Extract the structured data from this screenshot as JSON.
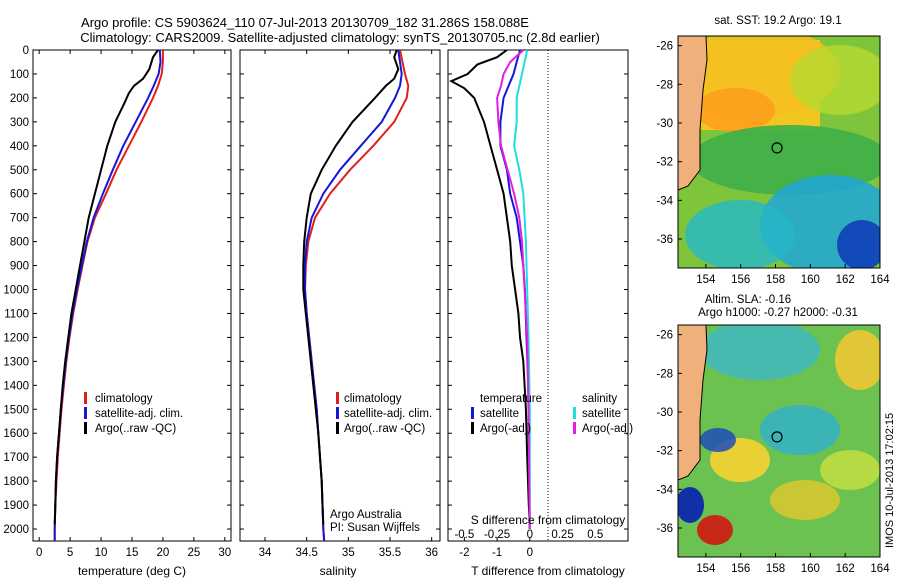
{
  "title": {
    "line1": "Argo profile: CS 5903624_110 07-Jul-2013 20130709_182 31.286S 158.088E",
    "line2": "Climatology: CARS2009. Satellite-adjusted climatology: synTS_20130705.nc (2.8d earlier)"
  },
  "footer": {
    "credit1": "Argo Australia",
    "credit2": "PI: Susan Wijffels",
    "stamp": "IMOS 10-Jul-2013 17:02:15"
  },
  "colors": {
    "climatology": "#e0201c",
    "satellite": "#1616d8",
    "argo": "#000000",
    "sal_satellite": "#22dde0",
    "sal_argo": "#e020e0"
  },
  "chart_data": [
    {
      "type": "line",
      "id": "temperature",
      "xlabel": "temperature (deg C)",
      "ylabel": "",
      "xlim": [
        -1,
        31
      ],
      "ylim": [
        2050,
        0
      ],
      "xticks": [
        0,
        5,
        10,
        15,
        20,
        25,
        30
      ],
      "yticks": [
        0,
        100,
        200,
        300,
        400,
        500,
        600,
        700,
        800,
        900,
        1000,
        1100,
        1200,
        1300,
        1400,
        1500,
        1600,
        1700,
        1800,
        1900,
        2000
      ],
      "legend": [
        "climatology",
        "satellite-adj. clim.",
        "Argo(..raw -QC)"
      ],
      "series": [
        {
          "name": "climatology",
          "depth": [
            0,
            50,
            100,
            150,
            200,
            300,
            400,
            500,
            600,
            700,
            800,
            900,
            1000,
            1100,
            1200,
            1300,
            1400,
            1500,
            1600,
            1700,
            1800,
            1900,
            2000,
            2050
          ],
          "values": [
            20,
            20,
            19.8,
            19.2,
            18.4,
            16.5,
            14.5,
            12.5,
            10.8,
            9.0,
            7.8,
            7.0,
            6.2,
            5.5,
            4.9,
            4.4,
            4.0,
            3.6,
            3.3,
            3.0,
            2.8,
            2.6,
            2.5,
            2.5
          ]
        },
        {
          "name": "satellite-adj. clim.",
          "depth": [
            0,
            50,
            100,
            150,
            200,
            300,
            400,
            500,
            600,
            700,
            800,
            900,
            1000,
            1100,
            1200,
            1300,
            1400,
            1500,
            1600,
            1700,
            1800,
            1900,
            2000,
            2050
          ],
          "values": [
            19.5,
            19.6,
            19.3,
            18.5,
            17.6,
            15.6,
            13.6,
            11.9,
            10.3,
            8.8,
            7.7,
            6.9,
            6.1,
            5.4,
            4.8,
            4.3,
            3.9,
            3.5,
            3.2,
            2.9,
            2.7,
            2.6,
            2.5,
            2.5
          ]
        },
        {
          "name": "Argo(..raw -QC)",
          "depth": [
            0,
            30,
            80,
            120,
            150,
            180,
            220,
            300,
            400,
            500,
            600,
            700,
            800,
            900,
            1000,
            1100,
            1200,
            1300,
            1400,
            1500,
            1600,
            1700,
            1800,
            1900,
            1980
          ],
          "values": [
            19.2,
            18.4,
            17.8,
            16.8,
            15.3,
            14.5,
            13.8,
            12.3,
            11.0,
            10.0,
            9.0,
            8.0,
            7.3,
            6.6,
            5.9,
            5.2,
            4.7,
            4.2,
            3.8,
            3.5,
            3.2,
            2.9,
            2.7,
            2.6,
            2.5
          ]
        }
      ]
    },
    {
      "type": "line",
      "id": "salinity",
      "xlabel": "salinity",
      "ylabel": "",
      "xlim": [
        33.7,
        36.1
      ],
      "ylim": [
        2050,
        0
      ],
      "xticks": [
        34,
        34.5,
        35,
        35.5,
        36
      ],
      "legend": [
        "climatology",
        "satellite-adj. clim.",
        "Argo(..raw -QC)"
      ],
      "series": [
        {
          "name": "climatology",
          "depth": [
            0,
            50,
            100,
            150,
            200,
            300,
            400,
            500,
            600,
            700,
            800,
            900,
            1000,
            1100,
            1200,
            1300,
            1400,
            1500,
            1600,
            1700,
            1800,
            1900,
            2000,
            2050
          ],
          "values": [
            35.62,
            35.65,
            35.68,
            35.72,
            35.7,
            35.55,
            35.3,
            35.02,
            34.78,
            34.6,
            34.52,
            34.49,
            34.48,
            34.5,
            34.53,
            34.56,
            34.59,
            34.62,
            34.64,
            34.66,
            34.68,
            34.69,
            34.7,
            34.71
          ]
        },
        {
          "name": "satellite-adj. clim.",
          "depth": [
            0,
            50,
            100,
            150,
            200,
            300,
            400,
            500,
            600,
            700,
            800,
            900,
            1000,
            1100,
            1200,
            1300,
            1400,
            1500,
            1600,
            1700,
            1800,
            1900,
            2000,
            2050
          ],
          "values": [
            35.6,
            35.62,
            35.64,
            35.62,
            35.56,
            35.4,
            35.15,
            34.9,
            34.7,
            34.56,
            34.5,
            34.48,
            34.48,
            34.5,
            34.53,
            34.56,
            34.59,
            34.62,
            34.64,
            34.66,
            34.68,
            34.69,
            34.7,
            34.71
          ]
        },
        {
          "name": "Argo(..raw -QC)",
          "depth": [
            0,
            30,
            80,
            120,
            150,
            200,
            300,
            400,
            500,
            600,
            700,
            800,
            900,
            1000,
            1100,
            1200,
            1300,
            1400,
            1500,
            1600,
            1700,
            1800,
            1900,
            1980
          ],
          "values": [
            35.58,
            35.55,
            35.6,
            35.55,
            35.45,
            35.32,
            35.05,
            34.85,
            34.68,
            34.55,
            34.5,
            34.47,
            34.46,
            34.46,
            34.49,
            34.52,
            34.55,
            34.58,
            34.61,
            34.64,
            34.66,
            34.68,
            34.69,
            34.7
          ]
        }
      ]
    },
    {
      "type": "line",
      "id": "difference",
      "xlabel": "T difference from climatology",
      "xlabel_top": "S difference from climatology",
      "ylabel": "",
      "xlim": [
        -2.5,
        3
      ],
      "ylim": [
        2050,
        0
      ],
      "xticks": [
        -2,
        -1,
        0
      ],
      "xticks_top": [
        "-0.5",
        "-0.25",
        "0",
        "0.25",
        "0.5"
      ],
      "legend_temperature_title": "temperature",
      "legend_salinity_title": "salinity",
      "legend": [
        "satellite",
        "Argo(-adj)",
        "satellite",
        "Argo(-adj)"
      ],
      "series": [
        {
          "name": "temperature satellite",
          "depth": [
            0,
            50,
            100,
            200,
            300,
            400,
            500,
            600,
            700,
            800,
            900,
            1000,
            1200,
            1400,
            1600,
            1800,
            2000
          ],
          "values": [
            -0.3,
            -0.4,
            -0.5,
            -0.8,
            -0.9,
            -0.9,
            -0.7,
            -0.6,
            -0.4,
            -0.3,
            -0.2,
            -0.15,
            -0.1,
            -0.05,
            -0.03,
            -0.02,
            -0.01
          ]
        },
        {
          "name": "temperature Argo(-adj)",
          "depth": [
            0,
            30,
            60,
            100,
            130,
            160,
            200,
            300,
            400,
            500,
            600,
            700,
            800,
            900,
            1000,
            1100,
            1200,
            1300,
            1500,
            1700,
            1900,
            1980
          ],
          "values": [
            -0.7,
            -1.0,
            -1.6,
            -1.9,
            -2.4,
            -2.0,
            -1.7,
            -1.4,
            -1.2,
            -1.0,
            -0.8,
            -0.7,
            -0.6,
            -0.55,
            -0.45,
            -0.35,
            -0.3,
            -0.2,
            -0.12,
            -0.08,
            -0.03,
            0
          ]
        },
        {
          "name": "salinity satellite",
          "depth": [
            0,
            50,
            100,
            200,
            300,
            400,
            500,
            600,
            800,
            1000,
            1200,
            1500,
            2000
          ],
          "values": [
            -0.02,
            -0.04,
            -0.06,
            -0.1,
            -0.1,
            -0.12,
            -0.08,
            -0.05,
            -0.03,
            -0.02,
            -0.01,
            0,
            0
          ]
        },
        {
          "name": "salinity Argo(-adj)",
          "depth": [
            0,
            50,
            100,
            150,
            200,
            300,
            400,
            500,
            600,
            700,
            800,
            900,
            1000,
            1200,
            1500,
            2000
          ],
          "values": [
            -0.05,
            -0.15,
            -0.2,
            -0.22,
            -0.25,
            -0.24,
            -0.22,
            -0.17,
            -0.12,
            -0.08,
            -0.06,
            -0.05,
            -0.04,
            -0.02,
            -0.01,
            0
          ]
        }
      ]
    },
    {
      "type": "heatmap",
      "id": "sst-map",
      "title": "sat. SST: 19.2 Argo: 19.1",
      "xlim": [
        152.4,
        164
      ],
      "ylim": [
        -37.5,
        -25.5
      ],
      "xticks": [
        154,
        156,
        158,
        160,
        162,
        164
      ],
      "yticks": [
        -26,
        -28,
        -30,
        -32,
        -34,
        -36
      ],
      "argo_position": [
        158.088,
        -31.286
      ]
    },
    {
      "type": "heatmap",
      "id": "sla-map",
      "title": "Altim. SLA: -0.16",
      "subtitle": "Argo h1000: -0.27 h2000: -0.31",
      "xlim": [
        152.4,
        164
      ],
      "ylim": [
        -37.5,
        -25.5
      ],
      "xticks": [
        154,
        156,
        158,
        160,
        162,
        164
      ],
      "yticks": [
        -26,
        -28,
        -30,
        -32,
        -34,
        -36
      ],
      "argo_position": [
        158.088,
        -31.286
      ]
    }
  ]
}
